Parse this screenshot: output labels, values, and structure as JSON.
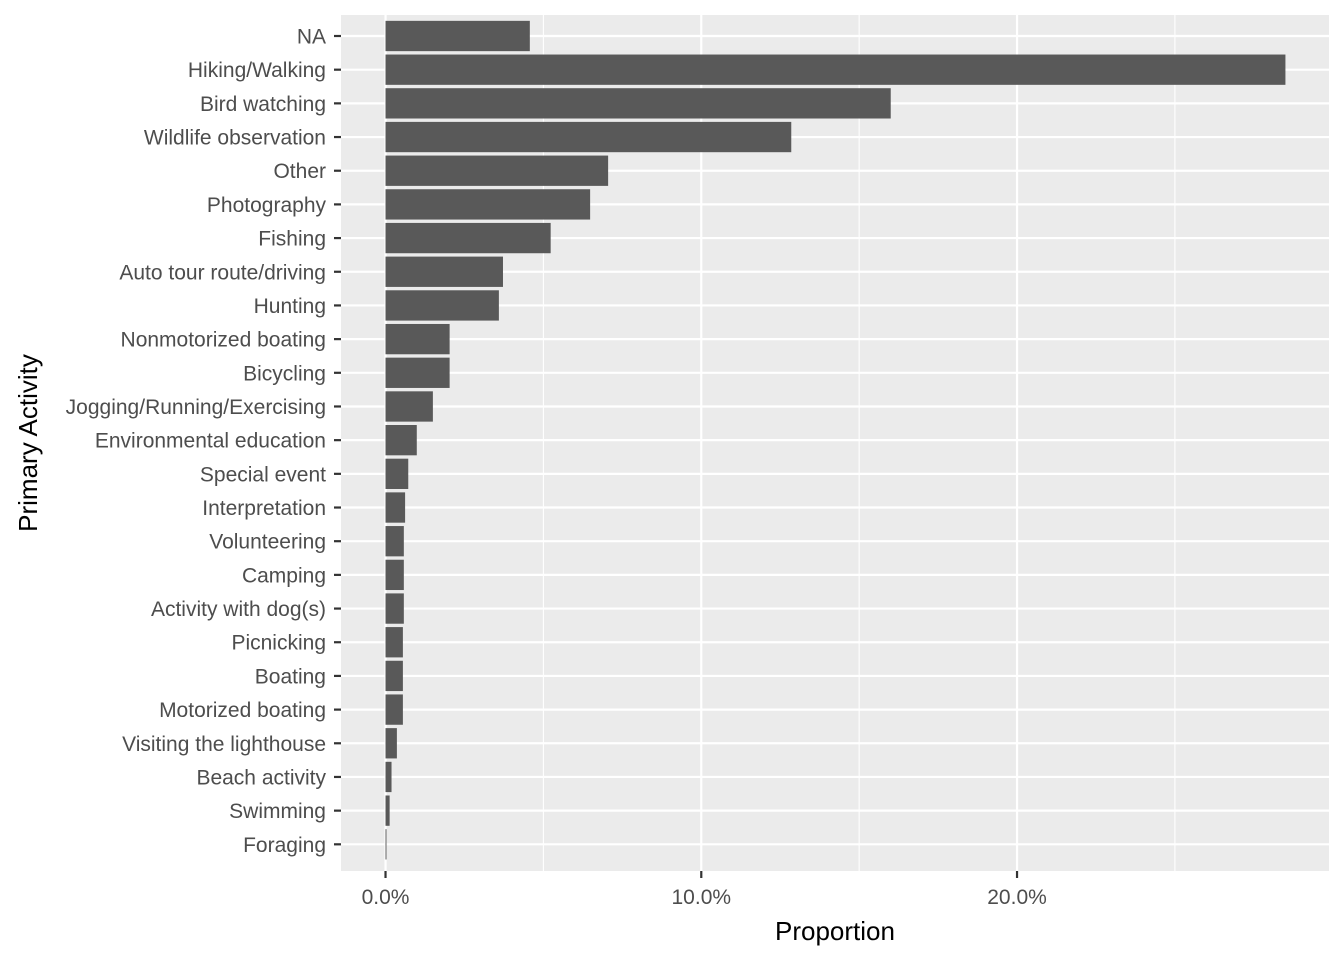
{
  "chart_data": {
    "type": "bar",
    "orientation": "horizontal",
    "xlabel": "Proportion",
    "ylabel": "Primary Activity",
    "xlim": [
      -0.0141,
      0.2988
    ],
    "x_ticks": [
      0,
      0.1,
      0.2
    ],
    "x_tick_labels": [
      "0.0%",
      "10.0%",
      "20.0%"
    ],
    "grid": true,
    "categories": [
      "NA",
      "Hiking/Walking",
      "Bird watching",
      "Wildlife observation",
      "Other",
      "Photography",
      "Fishing",
      "Auto tour route/driving",
      "Hunting",
      "Nonmotorized boating",
      "Bicycling",
      "Jogging/Running/Exercising",
      "Environmental education",
      "Special event",
      "Interpretation",
      "Volunteering",
      "Camping",
      "Activity with dog(s)",
      "Picnicking",
      "Boating",
      "Motorized boating",
      "Visiting the lighthouse",
      "Beach activity",
      "Swimming",
      "Foraging"
    ],
    "values": [
      0.0457,
      0.285,
      0.16,
      0.1285,
      0.0705,
      0.0648,
      0.0523,
      0.0372,
      0.0359,
      0.0203,
      0.0203,
      0.015,
      0.0099,
      0.0072,
      0.0062,
      0.0058,
      0.0058,
      0.0058,
      0.0055,
      0.0055,
      0.0055,
      0.0036,
      0.0019,
      0.0013,
      0.0003
    ],
    "colors": {
      "bar": "#595959",
      "panel": "#ebebeb",
      "grid": "#ffffff",
      "tick_text": "#4d4d4d"
    }
  }
}
